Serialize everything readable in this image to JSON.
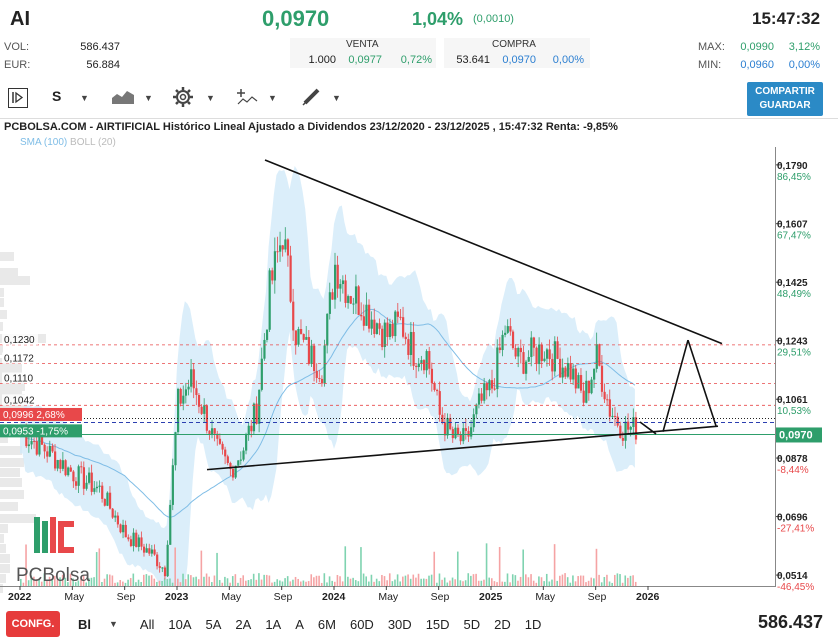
{
  "header": {
    "ticker": "AI",
    "price": "0,0970",
    "change_pct": "1,04%",
    "change_abs": "(0,0010)",
    "time": "15:47:32",
    "vol_label": "VOL:",
    "vol_value": "586.437",
    "eur_label": "EUR:",
    "eur_value": "56.884",
    "venta_label": "VENTA",
    "venta_qty": "1.000",
    "venta_price": "0,0977",
    "venta_pct": "0,72%",
    "compra_label": "COMPRA",
    "compra_qty": "53.641",
    "compra_price": "0,0970",
    "compra_pct": "0,00%",
    "max_label": "MAX:",
    "max_price": "0,0990",
    "max_pct": "3,12%",
    "min_label": "MIN:",
    "min_price": "0,0960",
    "min_pct": "0,00%"
  },
  "toolbar": {
    "period": "S",
    "save_label_1": "COMPARTIR",
    "save_label_2": "GUARDAR",
    "icons": [
      "play-step-icon",
      "area-chart-icon",
      "gear-icon",
      "indicators-icon",
      "draw-pencil-icon"
    ]
  },
  "bottom": {
    "confg": "CONFG.",
    "type": "Bl",
    "ranges": [
      "All",
      "10A",
      "5A",
      "2A",
      "1A",
      "A",
      "6M",
      "60D",
      "30D",
      "15D",
      "5D",
      "2D",
      "1D"
    ],
    "volume_total": "586.437"
  },
  "logo": {
    "text": "PCBolsa"
  },
  "colors": {
    "up": "#2e9e6b",
    "down": "#e8484a",
    "band": "#cfe8f8",
    "sma": "#7fbde6",
    "price_tag": "#2e9e6b"
  },
  "chart_data": {
    "type": "candlestick",
    "title": "PCBOLSA.COM - AIRTIFICIAL Histórico Lineal Ajustado a Dividendos 23/12/2020 - 23/12/2025 , 15:47:32 Renta: -9,85%",
    "legend": [
      "SMA (100)",
      "BOLL (20)"
    ],
    "x_ticks": [
      "2022",
      "May",
      "Sep",
      "2023",
      "May",
      "Sep",
      "2024",
      "May",
      "Sep",
      "2025",
      "May",
      "Sep",
      "2026"
    ],
    "y_ticks": [
      {
        "value": "0,1790",
        "pct": "86,45%"
      },
      {
        "value": "0,1607",
        "pct": "67,47%"
      },
      {
        "value": "0,1425",
        "pct": "48,49%"
      },
      {
        "value": "0,1243",
        "pct": "29,51%"
      },
      {
        "value": "0,1061",
        "pct": "10,53%"
      },
      {
        "value": "0,0878",
        "pct": "-8,44%"
      },
      {
        "value": "0,0696",
        "pct": "-27,41%"
      },
      {
        "value": "0,0514",
        "pct": "-46,45%"
      }
    ],
    "ylim": [
      0.048,
      0.183
    ],
    "current_price": "0,0970",
    "left_levels": [
      "0,1230",
      "0,1172",
      "0,1110",
      "0,1042"
    ],
    "left_tags": [
      {
        "text": "0,0996  2,68%"
      },
      {
        "text": "0,0953  -1,75%"
      }
    ],
    "series": [
      {
        "name": "AIRTIFICIAL",
        "points": [
          [
            "2022-01",
            0.096
          ],
          [
            "2022-03",
            0.09
          ],
          [
            "2022-05",
            0.083
          ],
          [
            "2022-07",
            0.078
          ],
          [
            "2022-09",
            0.064
          ],
          [
            "2022-11",
            0.058
          ],
          [
            "2022-12",
            0.053
          ],
          [
            "2023-01",
            0.105
          ],
          [
            "2023-02",
            0.112
          ],
          [
            "2023-03",
            0.102
          ],
          [
            "2023-04",
            0.09
          ],
          [
            "2023-05",
            0.084
          ],
          [
            "2023-06",
            0.091
          ],
          [
            "2023-07",
            0.103
          ],
          [
            "2023-08",
            0.14
          ],
          [
            "2023-09",
            0.158
          ],
          [
            "2023-10",
            0.127
          ],
          [
            "2023-11",
            0.12
          ],
          [
            "2023-12",
            0.116
          ],
          [
            "2024-01",
            0.148
          ],
          [
            "2024-02",
            0.14
          ],
          [
            "2024-03",
            0.136
          ],
          [
            "2024-05",
            0.126
          ],
          [
            "2024-06",
            0.13
          ],
          [
            "2024-07",
            0.121
          ],
          [
            "2024-08",
            0.12
          ],
          [
            "2024-09",
            0.101
          ],
          [
            "2024-10",
            0.094
          ],
          [
            "2024-11",
            0.093
          ],
          [
            "2024-12",
            0.104
          ],
          [
            "2025-01",
            0.11
          ],
          [
            "2025-02",
            0.128
          ],
          [
            "2025-03",
            0.118
          ],
          [
            "2025-05",
            0.122
          ],
          [
            "2025-07",
            0.115
          ],
          [
            "2025-08",
            0.106
          ],
          [
            "2025-09",
            0.119
          ],
          [
            "2025-10",
            0.103
          ],
          [
            "2025-11",
            0.097
          ],
          [
            "2025-12",
            0.097
          ]
        ]
      }
    ]
  }
}
